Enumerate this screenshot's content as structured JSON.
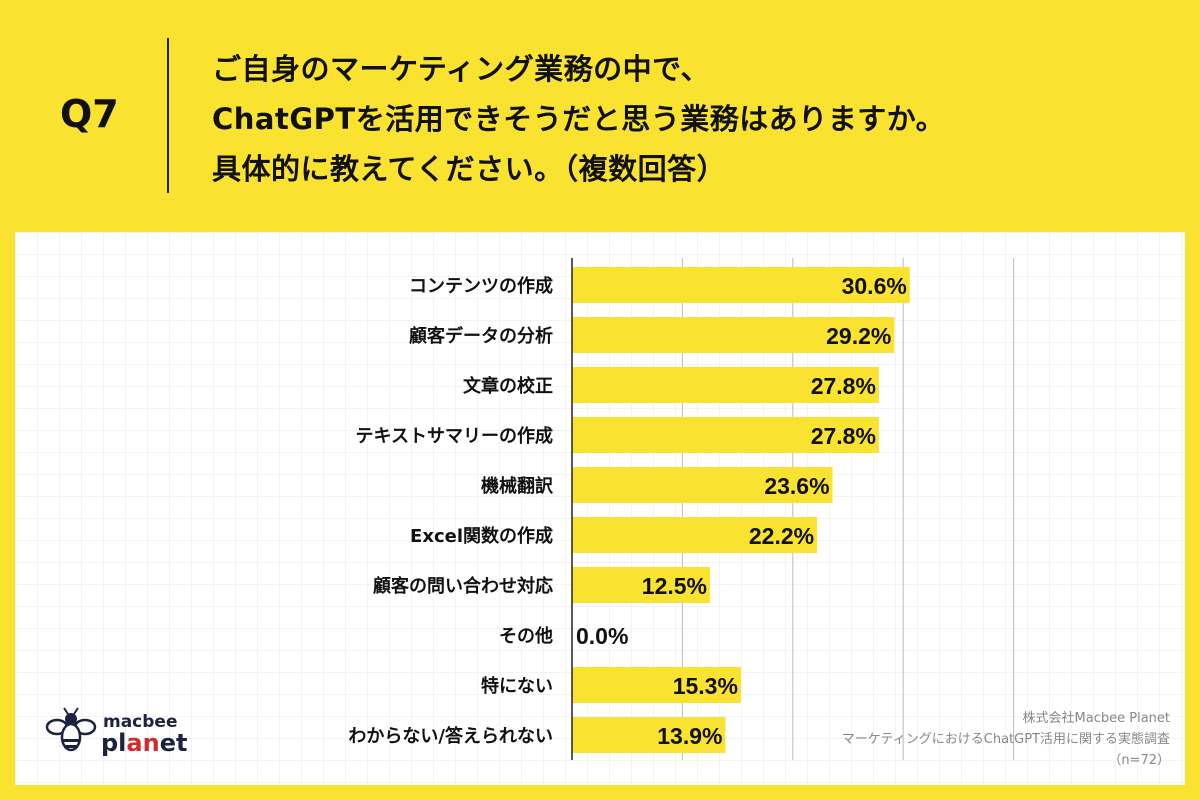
{
  "header": {
    "question_no": "Q7",
    "title_lines": [
      "ご自身のマーケティング業務の中で、",
      "ChatGPTを活用できそうだと思う業務はありますか。",
      "具体的に教えてください。（複数回答）"
    ]
  },
  "chart_data": {
    "type": "bar",
    "orientation": "horizontal",
    "categories": [
      "コンテンツの作成",
      "顧客データの分析",
      "文章の校正",
      "テキストサマリーの作成",
      "機械翻訳",
      "Excel関数の作成",
      "顧客の問い合わせ対応",
      "その他",
      "特にない",
      "わからない/答えられない"
    ],
    "values": [
      30.6,
      29.2,
      27.8,
      27.8,
      23.6,
      22.2,
      12.5,
      0.0,
      15.3,
      13.9
    ],
    "data_labels": [
      "30.6%",
      "29.2%",
      "27.8%",
      "27.8%",
      "23.6%",
      "22.2%",
      "12.5%",
      "0.0%",
      "15.3%",
      "13.9%"
    ],
    "xlim": [
      0,
      50
    ],
    "grid": true,
    "bar_color": "#f9e230"
  },
  "footer": {
    "source_lines": [
      "株式会社Macbee Planet",
      "マーケティングにおけるChatGPT活用に関する実態調査",
      "（n=72）"
    ],
    "logo_text": "macbee planet"
  }
}
